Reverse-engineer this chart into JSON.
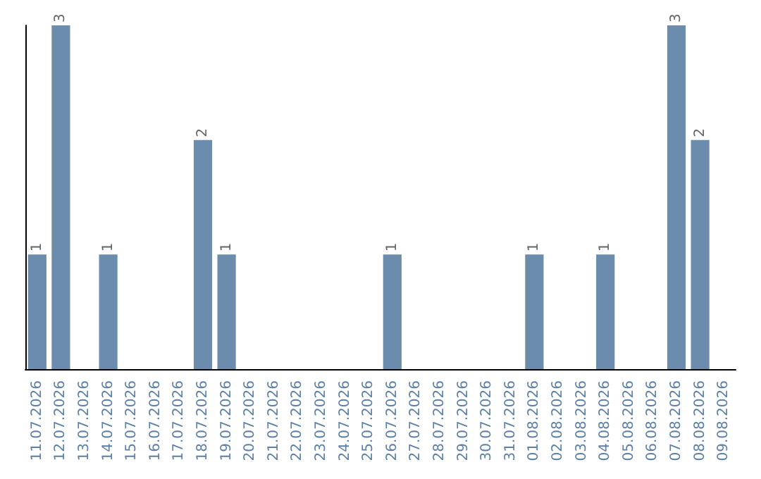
{
  "chart_data": {
    "type": "bar",
    "categories": [
      "11.07.2026",
      "12.07.2026",
      "13.07.2026",
      "14.07.2026",
      "15.07.2026",
      "16.07.2026",
      "17.07.2026",
      "18.07.2026",
      "19.07.2026",
      "20.07.2026",
      "21.07.2026",
      "22.07.2026",
      "23.07.2026",
      "24.07.2026",
      "25.07.2026",
      "26.07.2026",
      "27.07.2026",
      "28.07.2026",
      "29.07.2026",
      "30.07.2026",
      "31.07.2026",
      "01.08.2026",
      "02.08.2026",
      "03.08.2026",
      "04.08.2026",
      "05.08.2026",
      "06.08.2026",
      "07.08.2026",
      "08.08.2026",
      "09.08.2026"
    ],
    "values": [
      1,
      3,
      0,
      1,
      0,
      0,
      0,
      2,
      1,
      0,
      0,
      0,
      0,
      0,
      0,
      1,
      0,
      0,
      0,
      0,
      0,
      1,
      0,
      0,
      1,
      0,
      0,
      3,
      2,
      0
    ],
    "value_labels": [
      "1",
      "3",
      null,
      "1",
      null,
      null,
      null,
      "2",
      "1",
      null,
      null,
      null,
      null,
      null,
      null,
      "1",
      null,
      null,
      null,
      null,
      null,
      "1",
      null,
      null,
      "1",
      null,
      null,
      "3",
      "2",
      null
    ],
    "color": "#6b8cac",
    "tick_labels": "x",
    "grid": false
  }
}
